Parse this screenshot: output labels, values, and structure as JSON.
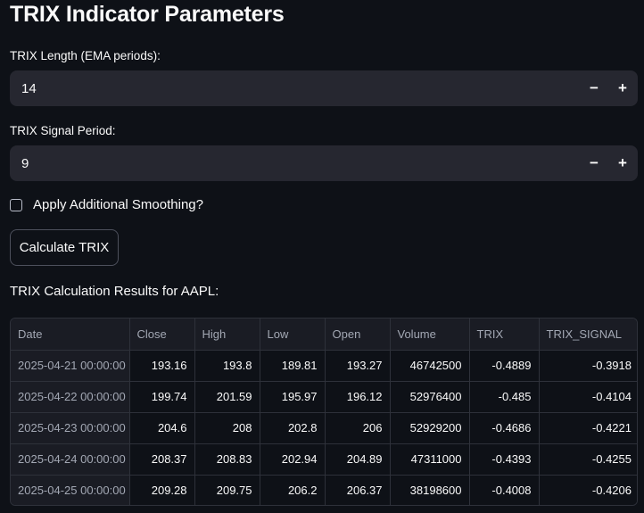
{
  "page": {
    "title": "TRIX Indicator Parameters"
  },
  "length_input": {
    "label": "TRIX Length (EMA periods):",
    "value": "14",
    "minus": "−",
    "plus": "+"
  },
  "signal_input": {
    "label": "TRIX Signal Period:",
    "value": "9",
    "minus": "−",
    "plus": "+"
  },
  "smoothing_checkbox": {
    "label": "Apply Additional Smoothing?",
    "checked": false
  },
  "calculate_button": {
    "label": "Calculate TRIX"
  },
  "results": {
    "heading": "TRIX Calculation Results for AAPL:",
    "columns": [
      "Date",
      "Close",
      "High",
      "Low",
      "Open",
      "Volume",
      "TRIX",
      "TRIX_SIGNAL"
    ],
    "rows": [
      [
        "2025-04-21 00:00:00",
        "193.16",
        "193.8",
        "189.81",
        "193.27",
        "46742500",
        "-0.4889",
        "-0.3918"
      ],
      [
        "2025-04-22 00:00:00",
        "199.74",
        "201.59",
        "195.97",
        "196.12",
        "52976400",
        "-0.485",
        "-0.4104"
      ],
      [
        "2025-04-23 00:00:00",
        "204.6",
        "208",
        "202.8",
        "206",
        "52929200",
        "-0.4686",
        "-0.4221"
      ],
      [
        "2025-04-24 00:00:00",
        "208.37",
        "208.83",
        "202.94",
        "204.89",
        "47311000",
        "-0.4393",
        "-0.4255"
      ],
      [
        "2025-04-25 00:00:00",
        "209.28",
        "209.75",
        "206.2",
        "206.37",
        "38198600",
        "-0.4008",
        "-0.4206"
      ]
    ]
  },
  "colors": {
    "background": "#0e1117",
    "input_background": "#262730",
    "text": "#fafafa",
    "muted_text": "#a3a8b4"
  }
}
